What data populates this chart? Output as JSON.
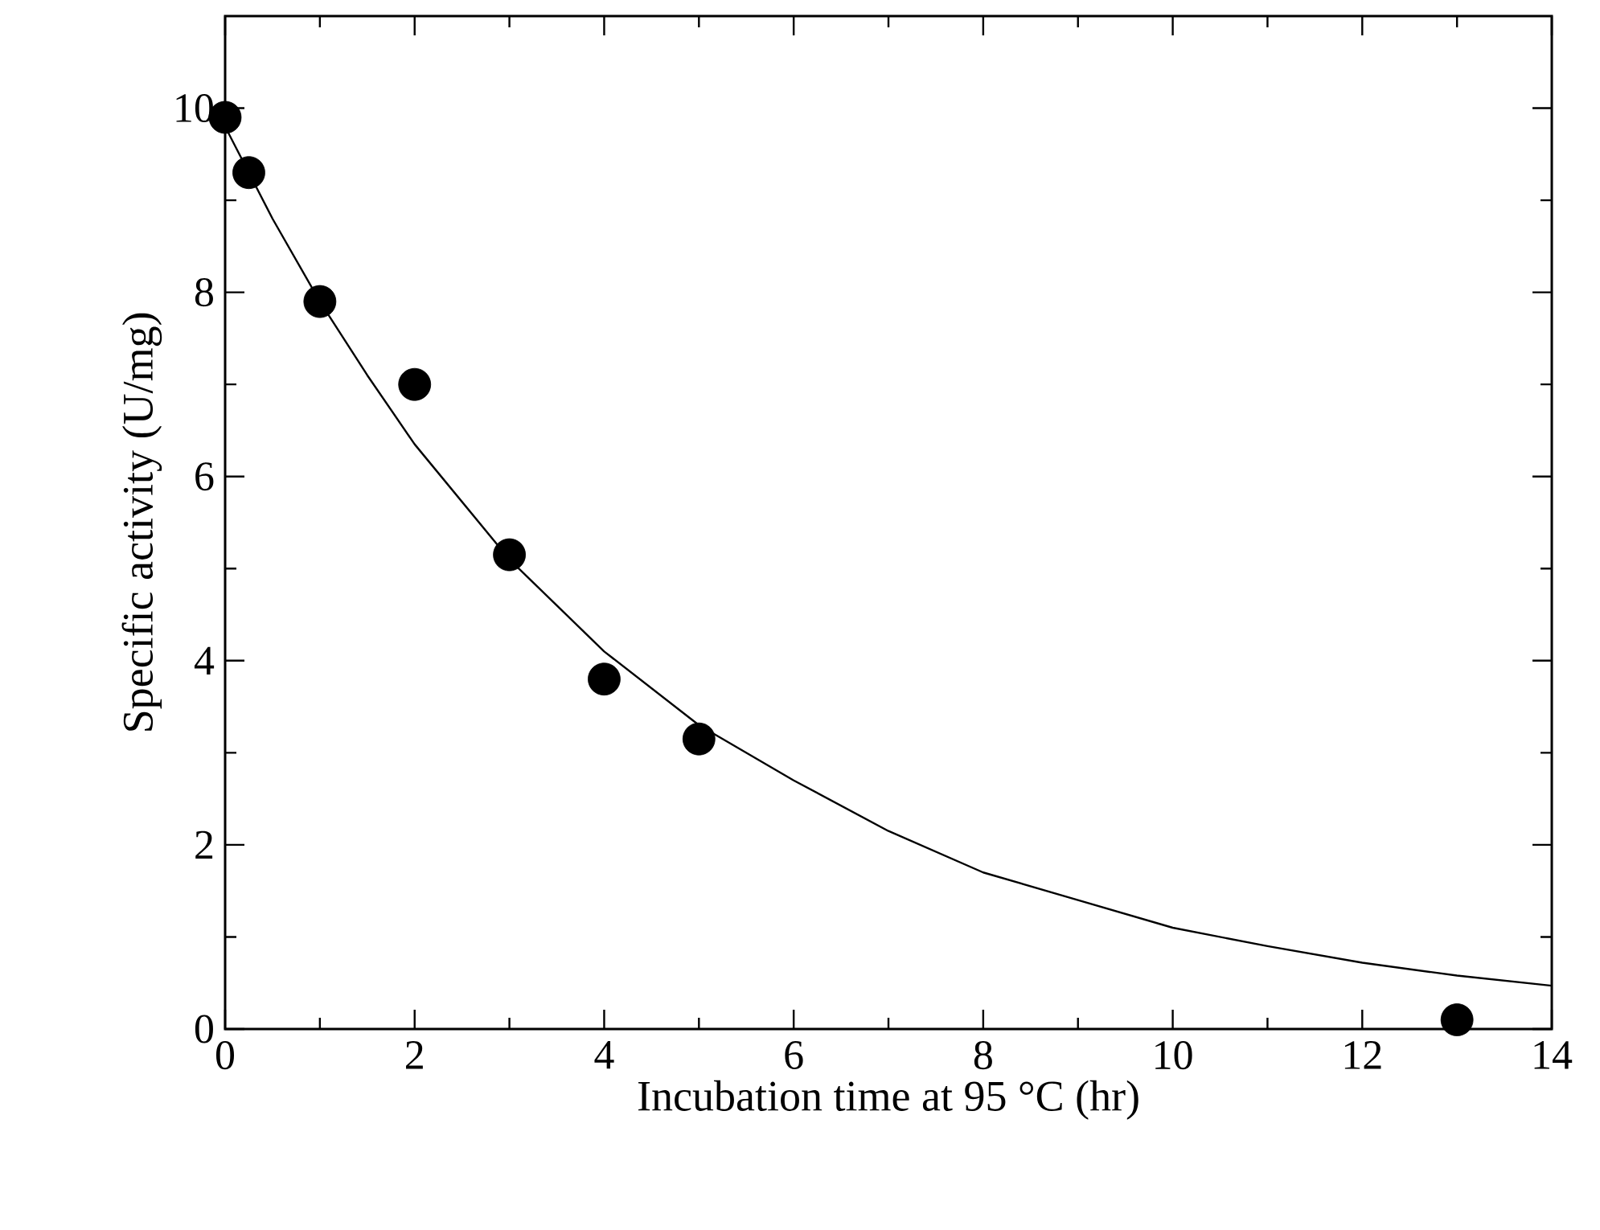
{
  "chart_data": {
    "type": "scatter",
    "xlabel": "Incubation time at 95 °C (hr)",
    "ylabel": "Specific activity (U/mg)",
    "xlim": [
      0,
      14
    ],
    "ylim": [
      0,
      11
    ],
    "xticks": [
      0,
      2,
      4,
      6,
      8,
      10,
      12,
      14
    ],
    "yticks": [
      0,
      2,
      4,
      6,
      8,
      10
    ],
    "grid": false,
    "series": [
      {
        "color": "#000000",
        "marker": "circle",
        "x": [
          0,
          0.25,
          1,
          2,
          3,
          4,
          5,
          13
        ],
        "values": [
          9.9,
          9.3,
          7.9,
          7.0,
          5.15,
          3.8,
          3.15,
          0.1
        ]
      },
      {
        "type": "line",
        "color": "#000000",
        "marker": "none",
        "line_style": "solid",
        "x": [
          0,
          0.5,
          1,
          1.5,
          2,
          3,
          4,
          5,
          6,
          7,
          8,
          9,
          10,
          11,
          12,
          13,
          14
        ],
        "values": [
          9.8,
          8.8,
          7.9,
          7.1,
          6.35,
          5.1,
          4.1,
          3.3,
          2.7,
          2.15,
          1.7,
          1.4,
          1.1,
          0.9,
          0.72,
          0.58,
          0.47
        ]
      }
    ]
  }
}
